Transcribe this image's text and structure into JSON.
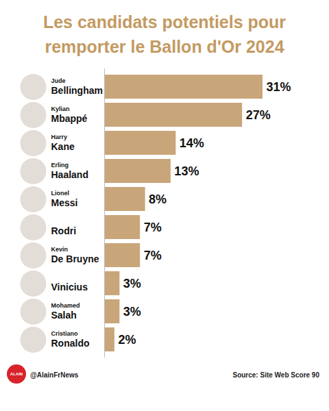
{
  "chart_data": {
    "type": "bar",
    "orientation": "horizontal",
    "title": "Les candidats potentiels pour remporter le Ballon d'Or 2024",
    "first_names": [
      "Jude",
      "Kylian",
      "Harry",
      "Erling",
      "Lionel",
      "",
      "Kevin",
      "",
      "Mohamed",
      "Cristiano"
    ],
    "categories": [
      "Bellingham",
      "Mbappé",
      "Kane",
      "Haaland",
      "Messi",
      "Rodri",
      "De Bruyne",
      "Vinicius",
      "Salah",
      "Ronaldo"
    ],
    "values": [
      31,
      27,
      14,
      13,
      8,
      7,
      7,
      3,
      3,
      2
    ],
    "value_labels": [
      "31%",
      "27%",
      "14%",
      "13%",
      "8%",
      "7%",
      "7%",
      "3%",
      "3%",
      "2%"
    ],
    "color": "#c9a57a",
    "xlim": [
      0,
      31
    ],
    "data_labels": true,
    "tick_labels": false,
    "grid": false,
    "source": "Source: Site Web Score 90",
    "credit": "@AlainFrNews",
    "logo": "ALAIN"
  }
}
